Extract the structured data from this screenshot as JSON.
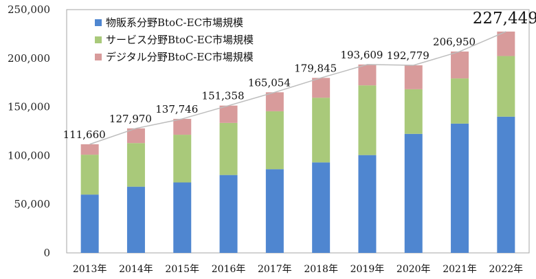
{
  "chart_data": {
    "type": "bar",
    "stacked": true,
    "categories": [
      "2013年",
      "2014年",
      "2015年",
      "2016年",
      "2017年",
      "2018年",
      "2019年",
      "2020年",
      "2021年",
      "2022年"
    ],
    "series": [
      {
        "name": "物販系分野BtoC-EC市場規模",
        "color": "#4f86d0",
        "values": [
          59931,
          68043,
          72398,
          80043,
          86008,
          92992,
          100515,
          122333,
          132865,
          139997
        ]
      },
      {
        "name": "サービス分野BtoC-EC市場規模",
        "color": "#a9c97a",
        "values": [
          40979,
          44816,
          49014,
          53532,
          59568,
          66471,
          71672,
          45832,
          46424,
          62300
        ]
      },
      {
        "name": "デジタル分野BtoC-EC市場規模",
        "color": "#d89b9b",
        "values": [
          10750,
          15111,
          16334,
          17783,
          19478,
          20382,
          21422,
          24614,
          27661,
          25152
        ]
      }
    ],
    "totals": [
      111660,
      127970,
      137746,
      151358,
      165054,
      179845,
      193609,
      192779,
      206950,
      227449
    ],
    "total_labels": [
      "111,660",
      "127,970",
      "137,746",
      "151,358",
      "165,054",
      "179,845",
      "193,609",
      "192,779",
      "206,950",
      "227,449"
    ],
    "y_ticks": [
      0,
      50000,
      100000,
      150000,
      200000,
      250000
    ],
    "y_tick_labels": [
      "0",
      "50,000",
      "100,000",
      "150,000",
      "200,000",
      "250,000"
    ],
    "ylim": [
      0,
      250000
    ],
    "title": "",
    "xlabel": "",
    "ylabel": "",
    "legend_position": "top-left",
    "total_line_color": "#bdbdbd"
  }
}
